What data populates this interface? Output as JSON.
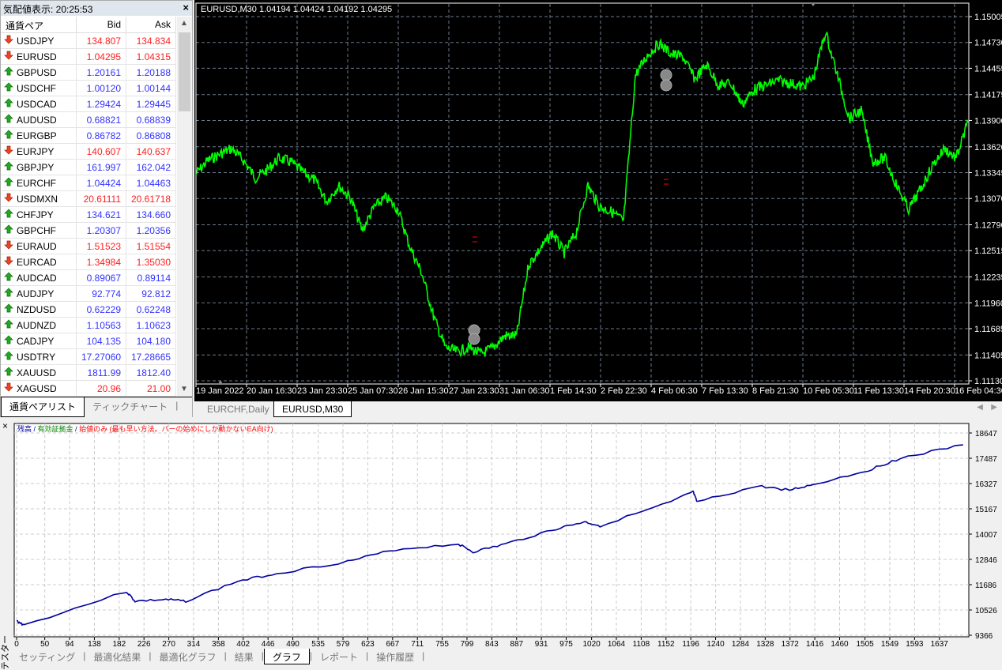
{
  "market_watch": {
    "title": "気配値表示: 20:25:53",
    "columns": {
      "symbol": "通貨ペア",
      "bid": "Bid",
      "ask": "Ask"
    },
    "rows": [
      {
        "symbol": "USDJPY",
        "dir": "down",
        "bid": "134.807",
        "ask": "134.834"
      },
      {
        "symbol": "EURUSD",
        "dir": "down",
        "bid": "1.04295",
        "ask": "1.04315"
      },
      {
        "symbol": "GBPUSD",
        "dir": "up",
        "bid": "1.20161",
        "ask": "1.20188"
      },
      {
        "symbol": "USDCHF",
        "dir": "up",
        "bid": "1.00120",
        "ask": "1.00144"
      },
      {
        "symbol": "USDCAD",
        "dir": "up",
        "bid": "1.29424",
        "ask": "1.29445"
      },
      {
        "symbol": "AUDUSD",
        "dir": "up",
        "bid": "0.68821",
        "ask": "0.68839"
      },
      {
        "symbol": "EURGBP",
        "dir": "up",
        "bid": "0.86782",
        "ask": "0.86808"
      },
      {
        "symbol": "EURJPY",
        "dir": "down",
        "bid": "140.607",
        "ask": "140.637"
      },
      {
        "symbol": "GBPJPY",
        "dir": "up",
        "bid": "161.997",
        "ask": "162.042"
      },
      {
        "symbol": "EURCHF",
        "dir": "up",
        "bid": "1.04424",
        "ask": "1.04463"
      },
      {
        "symbol": "USDMXN",
        "dir": "down",
        "bid": "20.61111",
        "ask": "20.61718"
      },
      {
        "symbol": "CHFJPY",
        "dir": "up",
        "bid": "134.621",
        "ask": "134.660"
      },
      {
        "symbol": "GBPCHF",
        "dir": "up",
        "bid": "1.20307",
        "ask": "1.20356"
      },
      {
        "symbol": "EURAUD",
        "dir": "down",
        "bid": "1.51523",
        "ask": "1.51554"
      },
      {
        "symbol": "EURCAD",
        "dir": "down",
        "bid": "1.34984",
        "ask": "1.35030"
      },
      {
        "symbol": "AUDCAD",
        "dir": "up",
        "bid": "0.89067",
        "ask": "0.89114"
      },
      {
        "symbol": "AUDJPY",
        "dir": "up",
        "bid": "92.774",
        "ask": "92.812"
      },
      {
        "symbol": "NZDUSD",
        "dir": "up",
        "bid": "0.62229",
        "ask": "0.62248"
      },
      {
        "symbol": "AUDNZD",
        "dir": "up",
        "bid": "1.10563",
        "ask": "1.10623"
      },
      {
        "symbol": "CADJPY",
        "dir": "up",
        "bid": "104.135",
        "ask": "104.180"
      },
      {
        "symbol": "USDTRY",
        "dir": "up",
        "bid": "17.27060",
        "ask": "17.28665"
      },
      {
        "symbol": "XAUUSD",
        "dir": "up",
        "bid": "1811.99",
        "ask": "1812.40"
      },
      {
        "symbol": "XAGUSD",
        "dir": "down",
        "bid": "20.96",
        "ask": "21.00"
      }
    ],
    "tabs": [
      "通貨ペアリスト",
      "ティックチャート"
    ],
    "colors": {
      "up": "#3333ff",
      "down": "#ff2020"
    }
  },
  "chart": {
    "header": "EURUSD,M30  1.04194 1.04424 1.04192 1.04295",
    "tabs": [
      "EURCHF,Daily",
      "EURUSD,M30"
    ],
    "active_tab": 1,
    "colors": {
      "line": "#00ff00",
      "bg": "#000000",
      "grid": "#6b7a8a"
    },
    "chart_data": {
      "type": "line",
      "ylim": [
        1.1113,
        1.15005
      ],
      "yticks": [
        "1.15005",
        "1.14730",
        "1.14455",
        "1.14175",
        "1.13900",
        "1.13620",
        "1.13345",
        "1.13070",
        "1.12790",
        "1.12515",
        "1.12235",
        "1.11960",
        "1.11685",
        "1.11405",
        "1.11130"
      ],
      "xticks": [
        "19 Jan 2022",
        "20 Jan 16:30",
        "23 Jan 23:30",
        "25 Jan 07:30",
        "26 Jan 15:30",
        "27 Jan 23:30",
        "31 Jan 06:30",
        "1 Feb 14:30",
        "2 Feb 22:30",
        "4 Feb 06:30",
        "7 Feb 13:30",
        "8 Feb 21:30",
        "10 Feb 05:30",
        "11 Feb 13:30",
        "14 Feb 20:30",
        "16 Feb 04:30"
      ],
      "values": [
        1.13332,
        1.13475,
        1.13542,
        1.13601,
        1.13475,
        1.1329,
        1.13374,
        1.135,
        1.13458,
        1.13349,
        1.13265,
        1.13038,
        1.13206,
        1.1308,
        1.12727,
        1.12979,
        1.1308,
        1.12954,
        1.12559,
        1.12281,
        1.11819,
        1.11483,
        1.11441,
        1.11483,
        1.11416,
        1.11483,
        1.11609,
        1.11609,
        1.12366,
        1.12534,
        1.12702,
        1.12492,
        1.12702,
        1.13206,
        1.12979,
        1.12929,
        1.12828,
        1.14383,
        1.14593,
        1.14719,
        1.1461,
        1.14576,
        1.14341,
        1.14492,
        1.14274,
        1.14299,
        1.14072,
        1.14232,
        1.14274,
        1.14324,
        1.14299,
        1.14257,
        1.14358,
        1.14845,
        1.14383,
        1.13921,
        1.14005,
        1.13458,
        1.135,
        1.13206,
        1.12954,
        1.13164,
        1.13416,
        1.13601,
        1.135,
        1.13879
      ]
    }
  },
  "tester": {
    "legend": {
      "balance": "残高",
      "sep": " / ",
      "equity": "有効証拠金",
      "model": "始値のみ (最も早い方法。バーの始めにしか動かないEA向け)"
    },
    "legend_colors": {
      "balance": "#0000a0",
      "equity": "#008000",
      "model": "#ff0000"
    },
    "side_label": "テスター",
    "tabs": [
      "セッティング",
      "最適化結果",
      "最適化グラフ",
      "結果",
      "グラフ",
      "レポート",
      "操作履歴"
    ],
    "active_tab": 4,
    "chart_data": {
      "type": "line",
      "ylim": [
        9366,
        18647
      ],
      "xlim": [
        0,
        1685
      ],
      "yticks": [
        "18647",
        "17487",
        "16327",
        "15167",
        "14007",
        "12846",
        "11686",
        "10526",
        "9366"
      ],
      "xticks": [
        "0",
        "50",
        "94",
        "138",
        "182",
        "226",
        "270",
        "314",
        "358",
        "402",
        "446",
        "490",
        "535",
        "579",
        "623",
        "667",
        "711",
        "755",
        "799",
        "843",
        "887",
        "931",
        "975",
        "1020",
        "1064",
        "1108",
        "1152",
        "1196",
        "1240",
        "1284",
        "1328",
        "1372",
        "1416",
        "1460",
        "1505",
        "1549",
        "1593",
        "1637"
      ],
      "series": [
        {
          "color": "#0000a0",
          "points": [
            [
              0,
              10020
            ],
            [
              13,
              9838
            ],
            [
              195,
              11367
            ],
            [
              210,
              10930
            ],
            [
              265,
              11003
            ],
            [
              300,
              10930
            ],
            [
              392,
              11840
            ],
            [
              462,
              12204
            ],
            [
              587,
              12750
            ],
            [
              672,
              13296
            ],
            [
              784,
              13551
            ],
            [
              810,
              13187
            ],
            [
              867,
              13551
            ],
            [
              951,
              14206
            ],
            [
              1007,
              14570
            ],
            [
              1035,
              14388
            ],
            [
              1161,
              15480
            ],
            [
              1200,
              15953
            ],
            [
              1207,
              15480
            ],
            [
              1315,
              16208
            ],
            [
              1371,
              16026
            ],
            [
              1413,
              16281
            ],
            [
              1511,
              16936
            ],
            [
              1567,
              17482
            ],
            [
              1679,
              18101
            ]
          ]
        }
      ]
    }
  }
}
